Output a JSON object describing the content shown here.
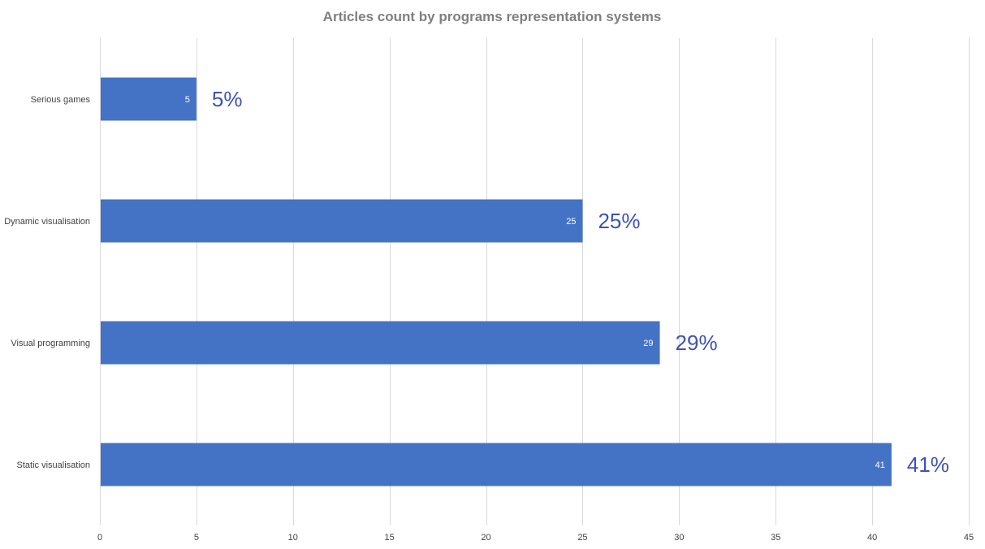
{
  "chart_data": {
    "type": "bar",
    "orientation": "horizontal",
    "title": "Articles count by programs representation systems",
    "xlabel": "",
    "ylabel": "",
    "categories": [
      "Serious games",
      "Dynamic visualisation",
      "Visual programming",
      "Static visualisation"
    ],
    "values": [
      5,
      25,
      29,
      41
    ],
    "data_labels": [
      "5",
      "25",
      "29",
      "41"
    ],
    "percent_labels": [
      "5%",
      "25%",
      "29%",
      "41%"
    ],
    "xlim": [
      0,
      45
    ],
    "x_ticks": [
      "0",
      "5",
      "10",
      "15",
      "20",
      "25",
      "30",
      "35",
      "40",
      "45"
    ],
    "grid": "vertical",
    "legend": "none",
    "colors": {
      "bar": "#4472c4",
      "percent_label": "#3f51b5",
      "title": "#7f7f7f",
      "axis_text": "#404040",
      "grid": "#d9d9d9"
    }
  }
}
